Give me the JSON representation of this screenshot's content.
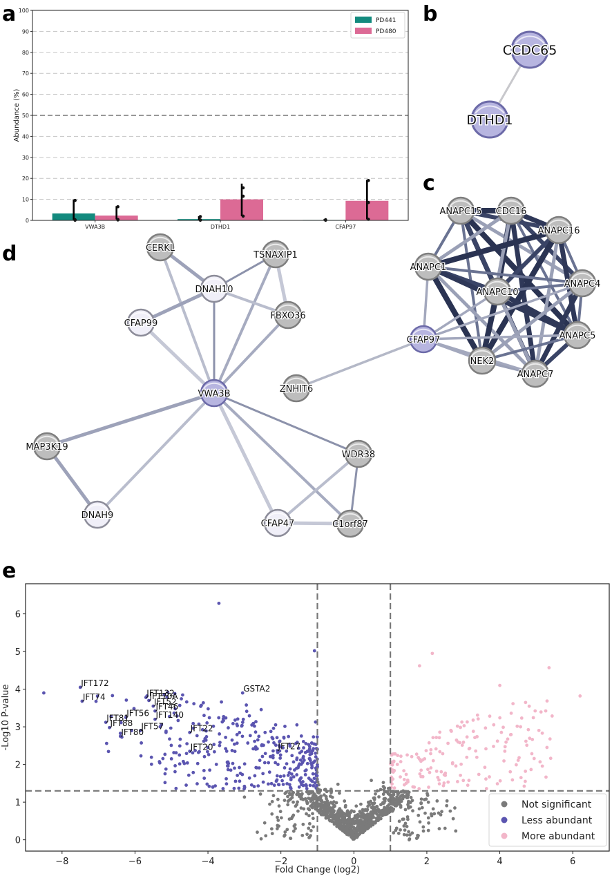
{
  "panels": {
    "a": "a",
    "b": "b",
    "c": "c",
    "d": "d",
    "e": "e"
  },
  "chart_data": [
    {
      "panel": "a",
      "type": "bar",
      "ylabel": "Abundance (%)",
      "xlabel": "",
      "ylim": [
        0,
        100
      ],
      "yticks": [
        "0",
        "10",
        "20",
        "30",
        "40",
        "50",
        "60",
        "70",
        "80",
        "90",
        "100"
      ],
      "grid": true,
      "threshold": 50,
      "legend_position": "top-right",
      "categories": [
        "VWA3B",
        "DTHD1",
        "CFAP97"
      ],
      "series": [
        {
          "name": "PD441",
          "color": "#138a7e",
          "values": [
            3.3,
            0.6,
            0.2
          ],
          "err_low": [
            0.3,
            0.0,
            0.0
          ],
          "err_high": [
            10.0,
            2.0,
            0.5
          ],
          "points": [
            [
              0.3,
              9.5,
              0.1
            ],
            [
              0.1,
              1.8,
              0.2
            ],
            [
              0.1,
              0.2,
              0.3
            ]
          ]
        },
        {
          "name": "PD480",
          "color": "#dc6a95",
          "values": [
            2.3,
            10.0,
            9.3
          ],
          "err_low": [
            0.5,
            2.0,
            0.5
          ],
          "err_high": [
            6.8,
            17.5,
            19.3
          ],
          "points": [
            [
              0.4,
              6.5,
              0.2
            ],
            [
              2.0,
              15.5,
              11.5
            ],
            [
              0.5,
              19.0,
              8.5
            ]
          ]
        }
      ]
    },
    {
      "panel": "e",
      "type": "scatter",
      "xlabel": "Fold Change (log2)",
      "ylabel": "-Log10 P-value",
      "xlim": [
        -9,
        7
      ],
      "ylim": [
        -0.3,
        6.8
      ],
      "xticks": [
        "−8",
        "−6",
        "−4",
        "−2",
        "0",
        "2",
        "4",
        "6"
      ],
      "yticks": [
        "0",
        "1",
        "2",
        "3",
        "4",
        "5",
        "6"
      ],
      "thresholds": {
        "fold_change": [
          -1,
          1
        ],
        "p_value": 1.3
      },
      "legend_position": "bottom-right",
      "categories": [
        {
          "name": "Not significant",
          "color": "#7a7a7a"
        },
        {
          "name": "Less abundant",
          "color": "#5b55b0"
        },
        {
          "name": "More abundant",
          "color": "#f2b6c9"
        }
      ],
      "labeled_points": [
        {
          "label": "JFT172",
          "x": -7.5,
          "y": 4.05
        },
        {
          "label": "JFT74",
          "x": -7.45,
          "y": 3.68
        },
        {
          "label": "JFT132",
          "x": -5.7,
          "y": 3.78
        },
        {
          "label": "JFT70A",
          "x": -5.62,
          "y": 3.7
        },
        {
          "label": "JFT52",
          "x": -5.5,
          "y": 3.55
        },
        {
          "label": "JFT46",
          "x": -5.45,
          "y": 3.42
        },
        {
          "label": "JFT56",
          "x": -6.25,
          "y": 3.25
        },
        {
          "label": "JFT140",
          "x": -5.45,
          "y": 3.2
        },
        {
          "label": "JFT81",
          "x": -6.8,
          "y": 3.12
        },
        {
          "label": "JFT88",
          "x": -6.7,
          "y": 2.98
        },
        {
          "label": "JFT57",
          "x": -5.85,
          "y": 2.9
        },
        {
          "label": "JFT80",
          "x": -6.4,
          "y": 2.75
        },
        {
          "label": "JFT22",
          "x": -4.5,
          "y": 2.85
        },
        {
          "label": "JFT20",
          "x": -4.5,
          "y": 2.35
        },
        {
          "label": "JFT27",
          "x": -2.1,
          "y": 2.37
        },
        {
          "label": "GSTA2",
          "x": -3.05,
          "y": 3.9
        }
      ],
      "extra_points": [
        {
          "x": -3.7,
          "y": 6.28,
          "group": 1
        },
        {
          "x": -1.08,
          "y": 5.02,
          "group": 1
        },
        {
          "x": -8.5,
          "y": 3.9,
          "group": 1
        },
        {
          "x": 2.15,
          "y": 4.95,
          "group": 2
        },
        {
          "x": 1.8,
          "y": 4.62,
          "group": 2
        },
        {
          "x": 5.35,
          "y": 4.57,
          "group": 2
        },
        {
          "x": 4.0,
          "y": 4.1,
          "group": 2
        },
        {
          "x": 6.2,
          "y": 3.82,
          "group": 2
        }
      ]
    }
  ],
  "networks": {
    "b": {
      "nodes": [
        {
          "id": "CCDC65",
          "label": "CCDC65",
          "kind": "query"
        },
        {
          "id": "DTHD1",
          "label": "DTHD1",
          "kind": "query"
        }
      ],
      "edges": [
        [
          "CCDC65",
          "DTHD1"
        ]
      ]
    },
    "c": {
      "nodes": [
        {
          "id": "ANAPC15",
          "label": "ANAPC15",
          "kind": "gray"
        },
        {
          "id": "CDC16",
          "label": "CDC16",
          "kind": "gray"
        },
        {
          "id": "ANAPC16",
          "label": "ANAPC16",
          "kind": "gray"
        },
        {
          "id": "ANAPC1",
          "label": "ANAPC1",
          "kind": "gray"
        },
        {
          "id": "ANAPC10",
          "label": "ANAPC10",
          "kind": "gray"
        },
        {
          "id": "ANAPC4",
          "label": "ANAPC4",
          "kind": "gray"
        },
        {
          "id": "ANAPC5",
          "label": "ANAPC5",
          "kind": "gray"
        },
        {
          "id": "CFAP97",
          "label": "CFAP97",
          "kind": "query"
        },
        {
          "id": "NEK2",
          "label": "NEK2",
          "kind": "gray"
        },
        {
          "id": "ANAPC7",
          "label": "ANAPC7",
          "kind": "gray"
        },
        {
          "id": "ZNHIT6",
          "label": "ZNHIT6",
          "kind": "gray"
        }
      ],
      "edges": [
        [
          "ANAPC15",
          "CDC16"
        ],
        [
          "ANAPC15",
          "ANAPC16"
        ],
        [
          "ANAPC15",
          "ANAPC1"
        ],
        [
          "ANAPC15",
          "ANAPC10"
        ],
        [
          "ANAPC15",
          "ANAPC4"
        ],
        [
          "ANAPC15",
          "ANAPC5"
        ],
        [
          "ANAPC15",
          "ANAPC7"
        ],
        [
          "ANAPC15",
          "NEK2"
        ],
        [
          "CDC16",
          "ANAPC16"
        ],
        [
          "CDC16",
          "ANAPC1"
        ],
        [
          "CDC16",
          "ANAPC10"
        ],
        [
          "CDC16",
          "ANAPC4"
        ],
        [
          "CDC16",
          "ANAPC5"
        ],
        [
          "CDC16",
          "ANAPC7"
        ],
        [
          "CDC16",
          "NEK2"
        ],
        [
          "ANAPC16",
          "ANAPC1"
        ],
        [
          "ANAPC16",
          "ANAPC10"
        ],
        [
          "ANAPC16",
          "ANAPC4"
        ],
        [
          "ANAPC16",
          "ANAPC5"
        ],
        [
          "ANAPC16",
          "ANAPC7"
        ],
        [
          "ANAPC16",
          "NEK2"
        ],
        [
          "ANAPC1",
          "ANAPC10"
        ],
        [
          "ANAPC1",
          "ANAPC4"
        ],
        [
          "ANAPC1",
          "ANAPC5"
        ],
        [
          "ANAPC1",
          "ANAPC7"
        ],
        [
          "ANAPC1",
          "NEK2"
        ],
        [
          "ANAPC1",
          "CFAP97"
        ],
        [
          "ANAPC10",
          "ANAPC4"
        ],
        [
          "ANAPC10",
          "ANAPC5"
        ],
        [
          "ANAPC10",
          "ANAPC7"
        ],
        [
          "ANAPC10",
          "NEK2"
        ],
        [
          "ANAPC10",
          "CFAP97"
        ],
        [
          "ANAPC4",
          "ANAPC5"
        ],
        [
          "ANAPC4",
          "ANAPC7"
        ],
        [
          "ANAPC4",
          "NEK2"
        ],
        [
          "ANAPC4",
          "CFAP97"
        ],
        [
          "ANAPC5",
          "ANAPC7"
        ],
        [
          "ANAPC5",
          "NEK2"
        ],
        [
          "ANAPC5",
          "CFAP97"
        ],
        [
          "NEK2",
          "ANAPC7"
        ],
        [
          "NEK2",
          "CFAP97"
        ],
        [
          "ANAPC7",
          "CFAP97"
        ],
        [
          "CFAP97",
          "ZNHIT6"
        ]
      ]
    },
    "d": {
      "nodes": [
        {
          "id": "CERKL",
          "label": "CERKL",
          "kind": "gray"
        },
        {
          "id": "TSNAXIP1",
          "label": "TSNAXIP1",
          "kind": "gray"
        },
        {
          "id": "DNAH10",
          "label": "DNAH10",
          "kind": "light"
        },
        {
          "id": "CFAP99",
          "label": "CFAP99",
          "kind": "light"
        },
        {
          "id": "FBXO36",
          "label": "FBXO36",
          "kind": "gray"
        },
        {
          "id": "VWA3B",
          "label": "VWA3B",
          "kind": "query"
        },
        {
          "id": "MAP3K19",
          "label": "MAP3K19",
          "kind": "gray"
        },
        {
          "id": "WDR38",
          "label": "WDR38",
          "kind": "gray"
        },
        {
          "id": "DNAH9",
          "label": "DNAH9",
          "kind": "light"
        },
        {
          "id": "CFAP47",
          "label": "CFAP47",
          "kind": "light"
        },
        {
          "id": "C1orf87",
          "label": "C1orf87",
          "kind": "gray"
        }
      ],
      "edges": [
        [
          "CERKL",
          "DNAH10"
        ],
        [
          "CERKL",
          "VWA3B"
        ],
        [
          "TSNAXIP1",
          "DNAH10"
        ],
        [
          "TSNAXIP1",
          "FBXO36"
        ],
        [
          "TSNAXIP1",
          "VWA3B"
        ],
        [
          "DNAH10",
          "CFAP99"
        ],
        [
          "DNAH10",
          "FBXO36"
        ],
        [
          "DNAH10",
          "VWA3B"
        ],
        [
          "CFAP99",
          "VWA3B"
        ],
        [
          "FBXO36",
          "VWA3B"
        ],
        [
          "VWA3B",
          "MAP3K19"
        ],
        [
          "VWA3B",
          "DNAH9"
        ],
        [
          "VWA3B",
          "WDR38"
        ],
        [
          "VWA3B",
          "CFAP47"
        ],
        [
          "VWA3B",
          "C1orf87"
        ],
        [
          "MAP3K19",
          "DNAH9"
        ],
        [
          "WDR38",
          "CFAP47"
        ],
        [
          "WDR38",
          "C1orf87"
        ],
        [
          "CFAP47",
          "C1orf87"
        ]
      ]
    }
  },
  "node_styles": {
    "query": {
      "fill": "#b7b5e0",
      "stroke": "#6c6aa8"
    },
    "gray": {
      "fill": "#bdbdbd",
      "stroke": "#7e7e7e"
    },
    "light": {
      "fill": "#f0eff8",
      "stroke": "#8c8c99"
    }
  }
}
